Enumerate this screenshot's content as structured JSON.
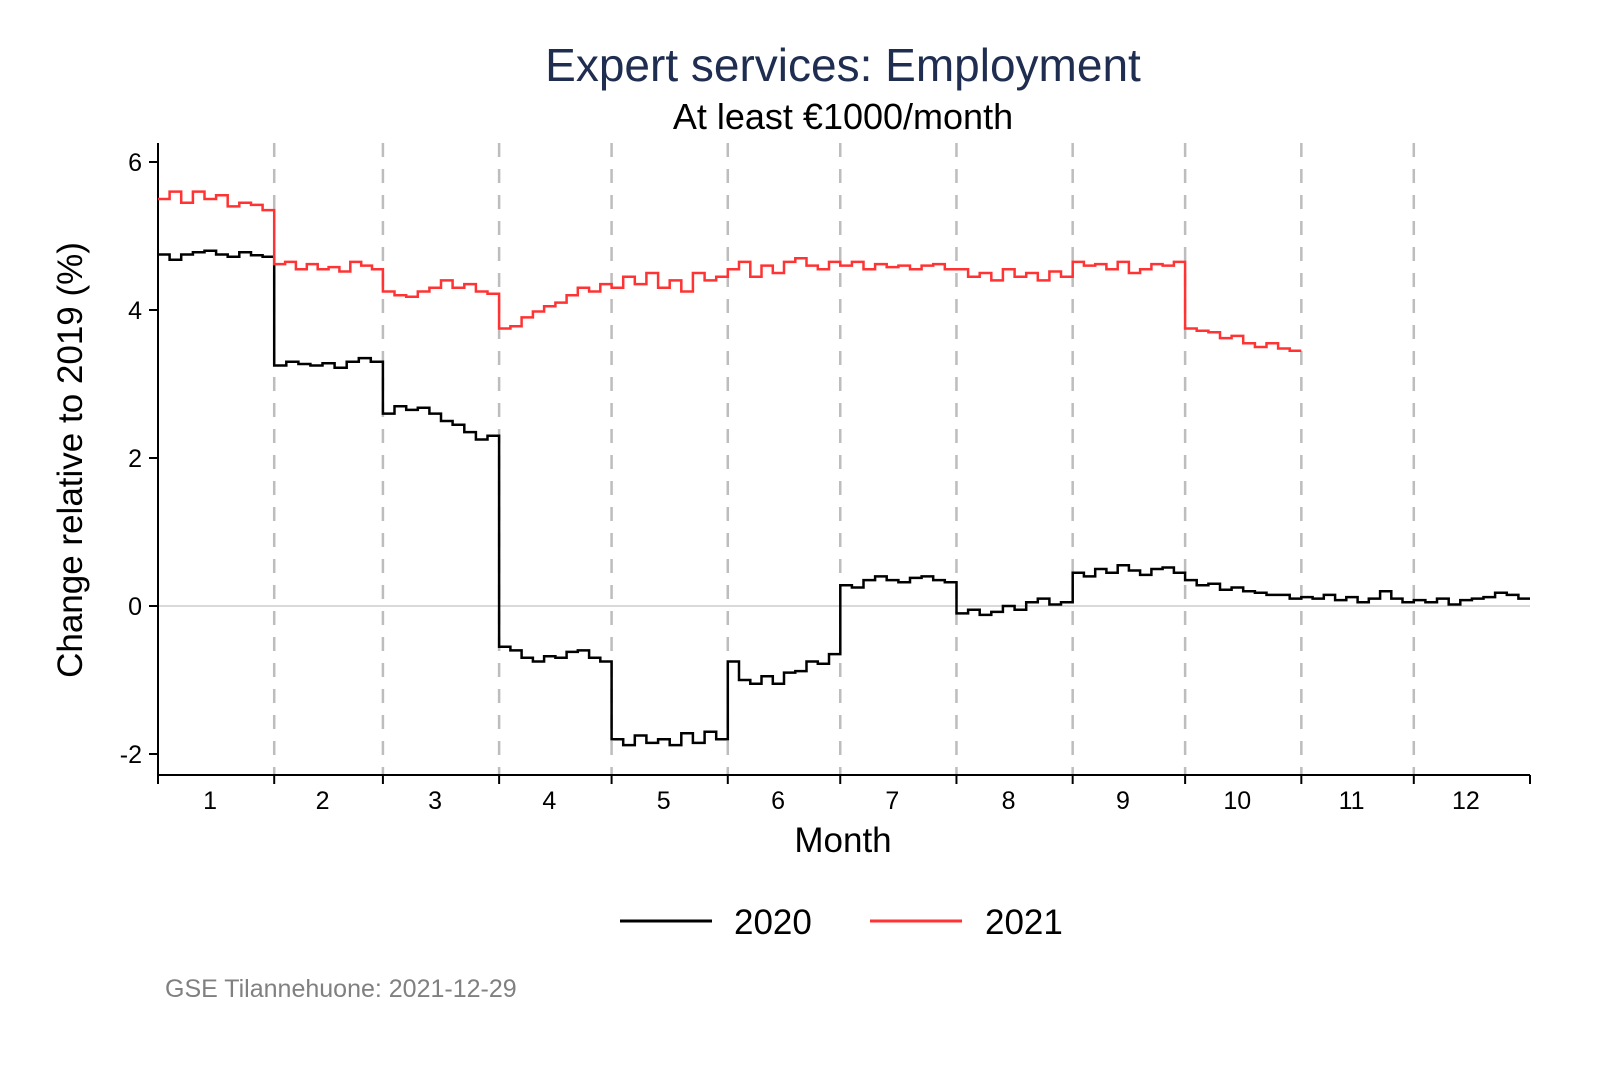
{
  "chart_data": {
    "type": "line",
    "title": "Expert services: Employment",
    "subtitle": "At least €1000/month",
    "xlabel": "Month",
    "ylabel": "Change relative to 2019 (%)",
    "ylim": [
      -2.3,
      6.3
    ],
    "yticks": [
      6,
      4,
      2,
      0,
      -2
    ],
    "ytick_labels": [
      "6",
      "4",
      "2",
      "0",
      "-2"
    ],
    "xtick_labels": [
      "1",
      "2",
      "3",
      "4",
      "5",
      "6",
      "7",
      "8",
      "9",
      "10",
      "11",
      "12"
    ],
    "month_days": [
      31,
      29,
      31,
      30,
      31,
      30,
      31,
      31,
      30,
      31,
      30,
      31
    ],
    "grid": "dashed vertical month separators, zero reference line",
    "legend_position": "bottom",
    "colors": {
      "2020": "#000000",
      "2021": "#ff3333",
      "title": "#1f2d50"
    },
    "series": [
      {
        "name": "2020",
        "values_by_month": [
          [
            4.75,
            4.68,
            4.75,
            4.78,
            4.8,
            4.75,
            4.72,
            4.78,
            4.74,
            4.72
          ],
          [
            3.25,
            3.3,
            3.27,
            3.25,
            3.28,
            3.22,
            3.3,
            3.35,
            3.3
          ],
          [
            2.6,
            2.7,
            2.65,
            2.68,
            2.6,
            2.5,
            2.45,
            2.35,
            2.25,
            2.3
          ],
          [
            -0.55,
            -0.6,
            -0.7,
            -0.75,
            -0.68,
            -0.7,
            -0.62,
            -0.6,
            -0.7,
            -0.75
          ],
          [
            -1.8,
            -1.88,
            -1.75,
            -1.85,
            -1.8,
            -1.88,
            -1.72,
            -1.85,
            -1.7,
            -1.8
          ],
          [
            -0.75,
            -1.0,
            -1.05,
            -0.95,
            -1.05,
            -0.9,
            -0.88,
            -0.75,
            -0.78,
            -0.65
          ],
          [
            0.28,
            0.25,
            0.35,
            0.4,
            0.35,
            0.32,
            0.38,
            0.4,
            0.35,
            0.32
          ],
          [
            -0.1,
            -0.05,
            -0.12,
            -0.08,
            0.0,
            -0.05,
            0.05,
            0.1,
            0.02,
            0.05
          ],
          [
            0.45,
            0.4,
            0.5,
            0.45,
            0.55,
            0.48,
            0.42,
            0.5,
            0.52,
            0.45
          ],
          [
            0.35,
            0.28,
            0.3,
            0.22,
            0.25,
            0.2,
            0.18,
            0.15,
            0.15,
            0.1
          ],
          [
            0.12,
            0.1,
            0.15,
            0.08,
            0.12,
            0.05,
            0.1,
            0.2,
            0.1,
            0.05
          ],
          [
            0.08,
            0.05,
            0.1,
            0.02,
            0.08,
            0.1,
            0.12,
            0.18,
            0.15,
            0.1
          ]
        ]
      },
      {
        "name": "2021",
        "values_by_month": [
          [
            5.5,
            5.6,
            5.45,
            5.6,
            5.5,
            5.55,
            5.4,
            5.45,
            5.42,
            5.35
          ],
          [
            4.62,
            4.65,
            4.55,
            4.62,
            4.55,
            4.58,
            4.52,
            4.65,
            4.6,
            4.55
          ],
          [
            4.25,
            4.2,
            4.18,
            4.25,
            4.3,
            4.4,
            4.3,
            4.35,
            4.25,
            4.22
          ],
          [
            3.75,
            3.78,
            3.9,
            3.98,
            4.05,
            4.1,
            4.2,
            4.3,
            4.25,
            4.35
          ],
          [
            4.3,
            4.45,
            4.35,
            4.5,
            4.3,
            4.4,
            4.25,
            4.5,
            4.4,
            4.45
          ],
          [
            4.55,
            4.65,
            4.45,
            4.6,
            4.5,
            4.65,
            4.7,
            4.6,
            4.55,
            4.65
          ],
          [
            4.6,
            4.65,
            4.55,
            4.62,
            4.58,
            4.6,
            4.55,
            4.6,
            4.62,
            4.55
          ],
          [
            4.55,
            4.45,
            4.5,
            4.4,
            4.55,
            4.45,
            4.5,
            4.4,
            4.52,
            4.45
          ],
          [
            4.65,
            4.6,
            4.62,
            4.55,
            4.65,
            4.5,
            4.55,
            4.62,
            4.6,
            4.65
          ],
          [
            3.75,
            3.72,
            3.7,
            3.62,
            3.65,
            3.55,
            3.5,
            3.55,
            3.48,
            3.45
          ]
        ]
      }
    ]
  },
  "legend": {
    "items": [
      "2020",
      "2021"
    ]
  },
  "footer": "GSE Tilannehuone: 2021-12-29"
}
